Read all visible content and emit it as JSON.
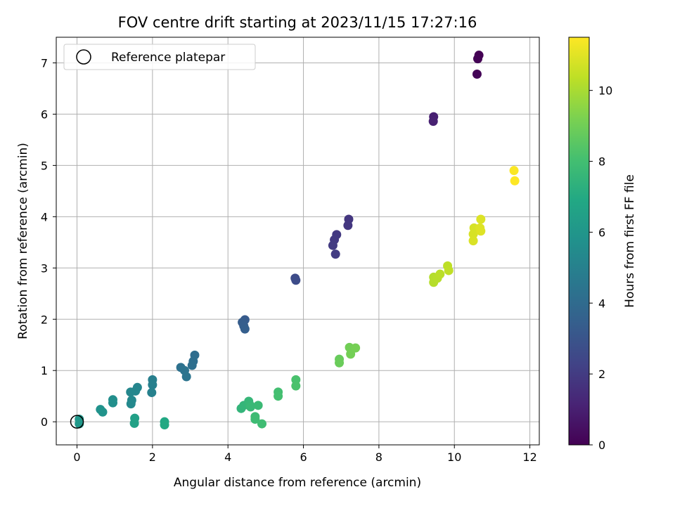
{
  "chart_data": {
    "type": "scatter",
    "title": "FOV centre drift starting at 2023/11/15 17:27:16",
    "xlabel": "Angular distance from reference (arcmin)",
    "ylabel": "Rotation from reference (arcmin)",
    "xlim": [
      -0.55,
      12.25
    ],
    "ylim": [
      -0.45,
      7.5
    ],
    "x_ticks": [
      0,
      2,
      4,
      6,
      8,
      10,
      12
    ],
    "y_ticks": [
      0,
      1,
      2,
      3,
      4,
      5,
      6,
      7
    ],
    "grid": true,
    "legend": {
      "position": "top-left",
      "entries": [
        {
          "label": "Reference platepar",
          "marker": "open-circle"
        }
      ]
    },
    "reference_point": {
      "x": 0,
      "y": 0
    },
    "colorbar": {
      "label": "Hours from first FF file",
      "colormap": "viridis",
      "range": [
        0,
        11.5
      ],
      "ticks": [
        0,
        2,
        4,
        6,
        8,
        10
      ]
    },
    "points": [
      {
        "x": 10.65,
        "y": 7.15,
        "c": 0.0
      },
      {
        "x": 10.62,
        "y": 7.08,
        "c": 0.05
      },
      {
        "x": 10.6,
        "y": 6.78,
        "c": 0.1
      },
      {
        "x": 9.45,
        "y": 5.95,
        "c": 1.0
      },
      {
        "x": 9.44,
        "y": 5.86,
        "c": 1.05
      },
      {
        "x": 7.2,
        "y": 3.95,
        "c": 1.8
      },
      {
        "x": 7.18,
        "y": 3.83,
        "c": 1.85
      },
      {
        "x": 6.88,
        "y": 3.65,
        "c": 1.9
      },
      {
        "x": 6.82,
        "y": 3.55,
        "c": 1.95
      },
      {
        "x": 6.78,
        "y": 3.44,
        "c": 2.0
      },
      {
        "x": 6.85,
        "y": 3.27,
        "c": 2.05
      },
      {
        "x": 5.78,
        "y": 2.8,
        "c": 2.6
      },
      {
        "x": 5.8,
        "y": 2.76,
        "c": 2.65
      },
      {
        "x": 4.45,
        "y": 1.99,
        "c": 3.3
      },
      {
        "x": 4.38,
        "y": 1.94,
        "c": 3.35
      },
      {
        "x": 4.42,
        "y": 1.87,
        "c": 3.4
      },
      {
        "x": 4.45,
        "y": 1.81,
        "c": 3.45
      },
      {
        "x": 3.12,
        "y": 1.3,
        "c": 4.1
      },
      {
        "x": 3.08,
        "y": 1.18,
        "c": 4.15
      },
      {
        "x": 3.05,
        "y": 1.1,
        "c": 4.2
      },
      {
        "x": 2.75,
        "y": 1.06,
        "c": 4.3
      },
      {
        "x": 2.85,
        "y": 1.0,
        "c": 4.35
      },
      {
        "x": 2.9,
        "y": 0.88,
        "c": 4.4
      },
      {
        "x": 2.0,
        "y": 0.82,
        "c": 4.9
      },
      {
        "x": 2.0,
        "y": 0.72,
        "c": 4.95
      },
      {
        "x": 1.98,
        "y": 0.57,
        "c": 5.0
      },
      {
        "x": 1.6,
        "y": 0.67,
        "c": 5.2
      },
      {
        "x": 1.55,
        "y": 0.6,
        "c": 5.25
      },
      {
        "x": 1.42,
        "y": 0.58,
        "c": 5.3
      },
      {
        "x": 1.45,
        "y": 0.42,
        "c": 5.35
      },
      {
        "x": 1.43,
        "y": 0.35,
        "c": 5.4
      },
      {
        "x": 0.95,
        "y": 0.43,
        "c": 5.6
      },
      {
        "x": 0.95,
        "y": 0.37,
        "c": 5.65
      },
      {
        "x": 0.62,
        "y": 0.24,
        "c": 5.8
      },
      {
        "x": 0.68,
        "y": 0.19,
        "c": 5.85
      },
      {
        "x": 0.06,
        "y": 0.05,
        "c": 6.05
      },
      {
        "x": 0.06,
        "y": -0.04,
        "c": 6.1
      },
      {
        "x": 1.53,
        "y": 0.07,
        "c": 6.5
      },
      {
        "x": 1.52,
        "y": -0.03,
        "c": 6.55
      },
      {
        "x": 2.32,
        "y": 0.0,
        "c": 6.9
      },
      {
        "x": 2.32,
        "y": -0.06,
        "c": 6.95
      },
      {
        "x": 4.35,
        "y": 0.26,
        "c": 7.5
      },
      {
        "x": 4.42,
        "y": 0.32,
        "c": 7.55
      },
      {
        "x": 4.55,
        "y": 0.4,
        "c": 7.6
      },
      {
        "x": 4.58,
        "y": 0.33,
        "c": 7.65
      },
      {
        "x": 4.6,
        "y": 0.29,
        "c": 7.7
      },
      {
        "x": 4.8,
        "y": 0.32,
        "c": 7.75
      },
      {
        "x": 4.72,
        "y": 0.1,
        "c": 7.8
      },
      {
        "x": 4.72,
        "y": 0.05,
        "c": 7.85
      },
      {
        "x": 4.9,
        "y": -0.04,
        "c": 7.9
      },
      {
        "x": 5.33,
        "y": 0.58,
        "c": 8.0
      },
      {
        "x": 5.33,
        "y": 0.5,
        "c": 8.05
      },
      {
        "x": 5.8,
        "y": 0.82,
        "c": 8.15
      },
      {
        "x": 5.8,
        "y": 0.7,
        "c": 8.2
      },
      {
        "x": 6.95,
        "y": 1.22,
        "c": 8.8
      },
      {
        "x": 6.95,
        "y": 1.15,
        "c": 8.85
      },
      {
        "x": 7.22,
        "y": 1.45,
        "c": 9.0
      },
      {
        "x": 7.25,
        "y": 1.32,
        "c": 9.05
      },
      {
        "x": 7.38,
        "y": 1.44,
        "c": 9.1
      },
      {
        "x": 9.45,
        "y": 2.82,
        "c": 10.2
      },
      {
        "x": 9.45,
        "y": 2.72,
        "c": 10.22
      },
      {
        "x": 9.55,
        "y": 2.8,
        "c": 10.25
      },
      {
        "x": 9.62,
        "y": 2.88,
        "c": 10.3
      },
      {
        "x": 9.82,
        "y": 3.04,
        "c": 10.35
      },
      {
        "x": 9.85,
        "y": 2.95,
        "c": 10.4
      },
      {
        "x": 10.52,
        "y": 3.78,
        "c": 10.8
      },
      {
        "x": 10.5,
        "y": 3.66,
        "c": 10.82
      },
      {
        "x": 10.5,
        "y": 3.53,
        "c": 10.85
      },
      {
        "x": 10.7,
        "y": 3.95,
        "c": 10.9
      },
      {
        "x": 10.68,
        "y": 3.78,
        "c": 10.92
      },
      {
        "x": 10.7,
        "y": 3.72,
        "c": 10.95
      },
      {
        "x": 11.58,
        "y": 4.9,
        "c": 11.45
      },
      {
        "x": 11.6,
        "y": 4.7,
        "c": 11.5
      }
    ]
  }
}
